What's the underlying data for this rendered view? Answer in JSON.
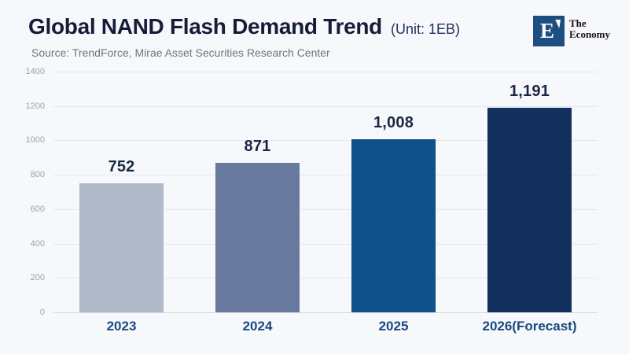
{
  "header": {
    "title": "Global NAND Flash Demand Trend",
    "unit": "(Unit: 1EB)",
    "source": "Source: TrendForce, Mirae Asset Securities Research Center"
  },
  "logo": {
    "mark": "E",
    "name_line1": "The",
    "name_line2": "Economy"
  },
  "chart_data": {
    "type": "bar",
    "title": "Global NAND Flash Demand Trend",
    "unit": "1EB",
    "categories": [
      "2023",
      "2024",
      "2025",
      "2026(Forecast)"
    ],
    "values": [
      752,
      871,
      1008,
      1191
    ],
    "value_labels": [
      "752",
      "871",
      "1,008",
      "1,191"
    ],
    "bar_colors": [
      "#b2b9c9",
      "#68799e",
      "#10518b",
      "#132f5d"
    ],
    "xlabel": "",
    "ylabel": "",
    "ylim": [
      0,
      1400
    ],
    "yticks": [
      0,
      200,
      400,
      600,
      800,
      1000,
      1200,
      1400
    ],
    "grid": true,
    "legend": false
  },
  "colors": {
    "background": "#f7f8fb",
    "title_text": "#151c38",
    "unit_text": "#22315c",
    "source_text": "#6e7581",
    "grid_line": "#e4e7ed",
    "axis_line": "#d5d9e0",
    "y_tick_text": "#9aa2b1",
    "value_label_text": "#1b2742",
    "category_label_text": "#17497f",
    "logo_blue": "#1d4e81"
  }
}
